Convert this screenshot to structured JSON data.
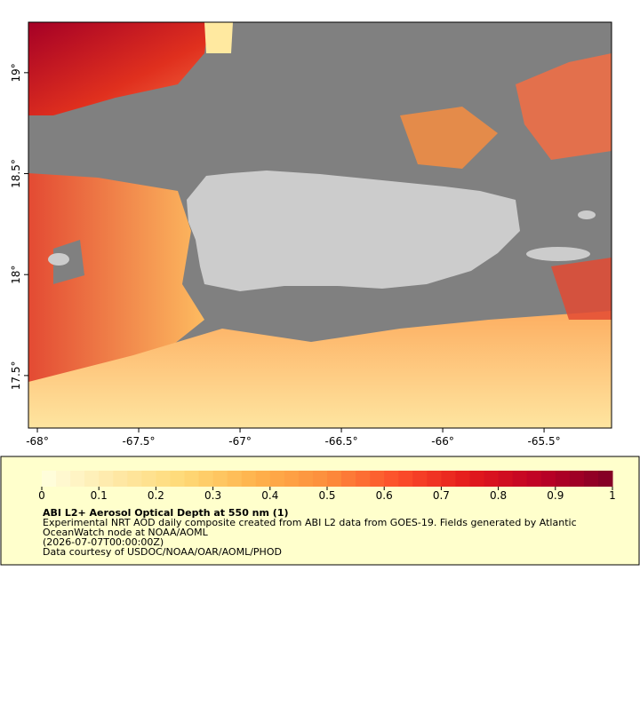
{
  "map": {
    "xlim": [
      -68.044,
      -65.167
    ],
    "ylim": [
      17.24,
      19.25
    ],
    "xticks": [
      {
        "value": -68,
        "label": "-68°"
      },
      {
        "value": -67.5,
        "label": "-67.5°"
      },
      {
        "value": -67,
        "label": "-67°"
      },
      {
        "value": -66.5,
        "label": "-66.5°"
      },
      {
        "value": -66,
        "label": "-66°"
      },
      {
        "value": -65.5,
        "label": "-65.5°"
      }
    ],
    "yticks": [
      {
        "value": 17.5,
        "label": "17.5°"
      },
      {
        "value": 18,
        "label": "18°"
      },
      {
        "value": 18.5,
        "label": "18.5°"
      },
      {
        "value": 19,
        "label": "19°"
      }
    ]
  },
  "legend": {
    "colorbar": {
      "range": [
        0,
        1
      ],
      "ticks": [
        0,
        0.1,
        0.2,
        0.3,
        0.4,
        0.5,
        0.6,
        0.7,
        0.8,
        0.9,
        1
      ],
      "colors": [
        "#ffffe0",
        "#fee9a8",
        "#fed976",
        "#feb24c",
        "#fd8d3c",
        "#fc4e2a",
        "#e31a1c",
        "#bd0026",
        "#800026"
      ]
    },
    "title": "ABI L2+ Aerosol Optical Depth at 550 nm (1)",
    "lines": [
      "Experimental NRT AOD daily composite created from ABI L2 data from GOES-19. Fields generated by Atlantic",
      "OceanWatch node at NOAA/AOML",
      "(2026-07-07T00:00:00Z)",
      "Data courtesy of USDOC/NOAA/OAR/AOML/PHOD"
    ]
  }
}
